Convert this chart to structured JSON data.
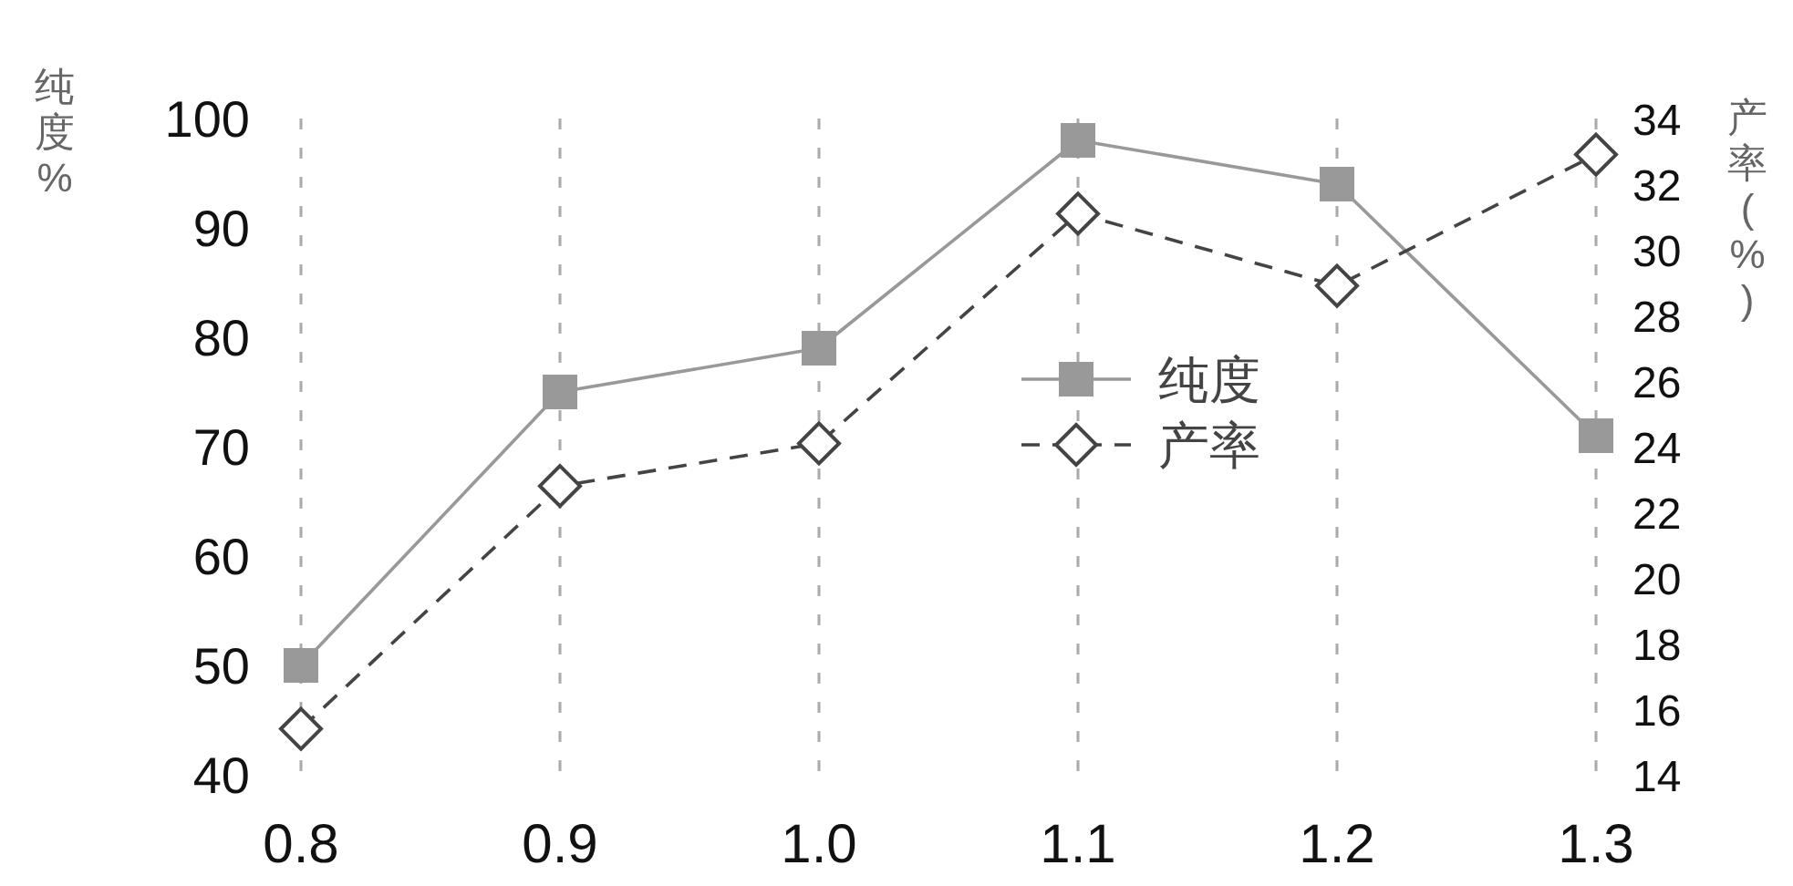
{
  "chart_data": {
    "type": "line",
    "ylabel": "纯度%",
    "y2label": "产率(%)",
    "x": [
      0.8,
      0.9,
      1.0,
      1.1,
      1.2,
      1.3
    ],
    "xlim": [
      0.8,
      1.3
    ],
    "xticks": [
      {
        "value": 0.8,
        "label": "0.8"
      },
      {
        "value": 0.9,
        "label": "0.9"
      },
      {
        "value": 1.0,
        "label": "1.0"
      },
      {
        "value": 1.1,
        "label": "1.1"
      },
      {
        "value": 1.2,
        "label": "1.2"
      },
      {
        "value": 1.3,
        "label": "1.3"
      }
    ],
    "ylim": [
      40,
      100
    ],
    "yticks": [
      40,
      50,
      60,
      70,
      80,
      90,
      100
    ],
    "y2lim": [
      14,
      34
    ],
    "y2ticks": [
      14,
      16,
      18,
      20,
      22,
      24,
      26,
      28,
      30,
      32,
      34
    ],
    "grid": "x",
    "legend": "center",
    "series": [
      {
        "name": "纯度",
        "color": "#999999",
        "marker": "square",
        "line_style": "solid",
        "values": [
          50,
          75,
          79,
          98,
          94,
          71
        ]
      },
      {
        "name": "产率",
        "color": "#444444",
        "marker": "diamond",
        "line_style": "dashed",
        "axis": "y2",
        "values": [
          15.4,
          22.8,
          24.1,
          31.1,
          28.9,
          32.9
        ]
      }
    ]
  }
}
